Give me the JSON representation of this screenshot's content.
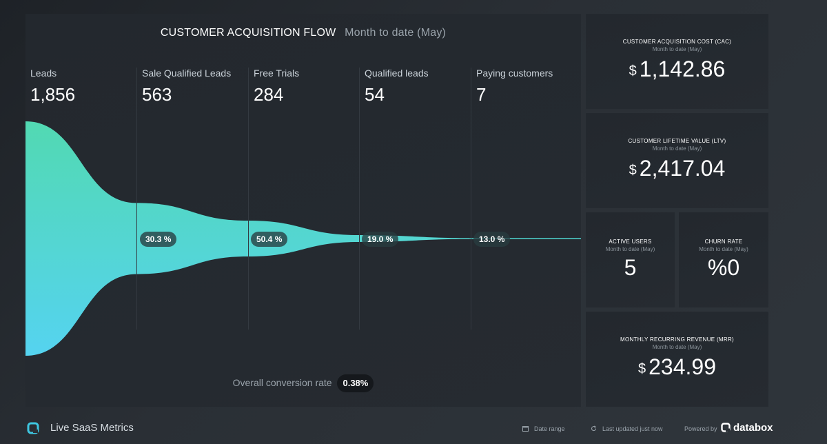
{
  "funnel": {
    "title": "CUSTOMER ACQUISITION FLOW",
    "period": "Month to date (May)",
    "stages": [
      {
        "label": "Leads",
        "value": "1,856"
      },
      {
        "label": "Sale Qualified Leads",
        "value": "563"
      },
      {
        "label": "Free Trials",
        "value": "284"
      },
      {
        "label": "Qualified leads",
        "value": "54"
      },
      {
        "label": "Paying customers",
        "value": "7"
      }
    ],
    "conversion_rates": [
      "30.3 %",
      "50.4 %",
      "19.0 %",
      "13.0 %"
    ],
    "overall_label": "Overall conversion rate",
    "overall_value": "0.38%",
    "colors": {
      "top": "#52d9b2",
      "bottom": "#55d3f0",
      "accent": "#4fd6d0"
    }
  },
  "metrics": {
    "cac": {
      "title": "CUSTOMER ACQUISITION COST (CAC)",
      "subtitle": "Month to date (May)",
      "currency": "$",
      "value": "1,142.86"
    },
    "ltv": {
      "title": "CUSTOMER LIFETIME VALUE (LTV)",
      "subtitle": "Month to date (May)",
      "currency": "$",
      "value": "2,417.04"
    },
    "active_users": {
      "title": "ACTIVE USERS",
      "subtitle": "Month to date (May)",
      "value": "5"
    },
    "churn": {
      "title": "CHURN RATE",
      "subtitle": "Month to date (May)",
      "value": "%0"
    },
    "mrr": {
      "title": "MONTHLY RECURRING REVENUE (MRR)",
      "subtitle": "Month to date (May)",
      "currency": "$",
      "value": "234.99"
    }
  },
  "footer": {
    "title": "Live SaaS Metrics",
    "date_range": "Date range",
    "last_updated": "Last updated just now",
    "powered_by": "Powered by",
    "brand": "databox",
    "icons": [
      "databox-logo-icon",
      "calendar-icon",
      "refresh-icon",
      "databox-brand-icon"
    ]
  }
}
